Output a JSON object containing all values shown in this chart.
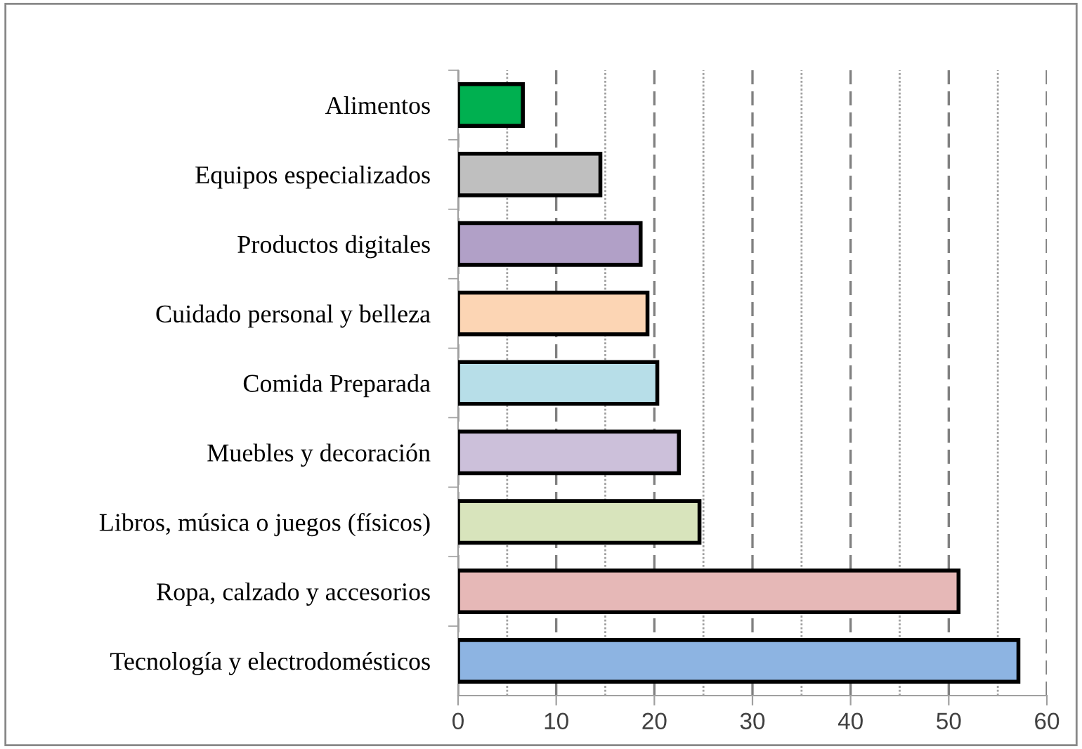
{
  "chart_data": {
    "type": "bar",
    "orientation": "horizontal",
    "categories": [
      "Alimentos",
      "Equipos especializados",
      "Productos digitales",
      "Cuidado personal y belleza",
      "Comida Preparada",
      "Muebles y decoración",
      "Libros, música o juegos (físicos)",
      "Ropa, calzado y accesorios",
      "Tecnología y electrodomésticos"
    ],
    "values": [
      6.6,
      14.5,
      18.6,
      19.3,
      20.3,
      22.5,
      24.6,
      51.0,
      57.1
    ],
    "colors": [
      "#00b050",
      "#bfbfbf",
      "#b1a0c7",
      "#fcd5b4",
      "#b7dee8",
      "#ccc0da",
      "#d8e4bc",
      "#e6b8b7",
      "#8db4e2"
    ],
    "xlim": [
      0,
      60
    ],
    "xticks": [
      0,
      10,
      20,
      30,
      40,
      50,
      60
    ],
    "grid": "x"
  }
}
